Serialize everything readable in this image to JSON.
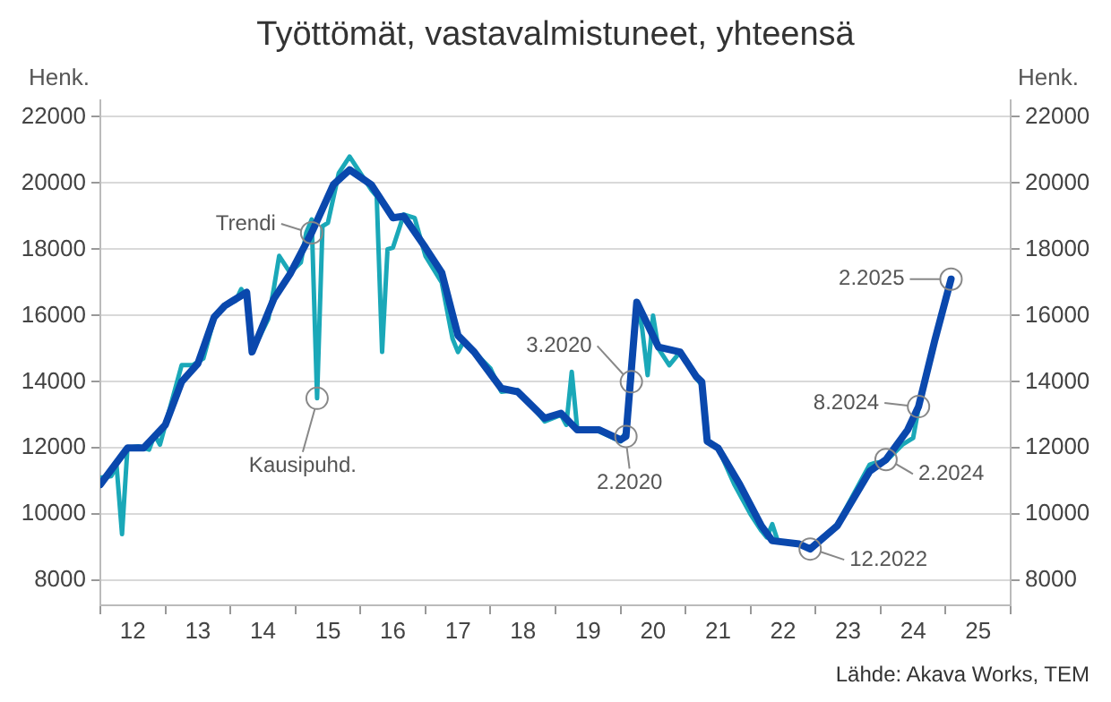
{
  "chart_data": {
    "type": "line",
    "title": "Työttömät, vastavalmistuneet, yhteensä",
    "ylabel": "Henk.",
    "y2label": "Henk.",
    "xlim": [
      "2012-01-01",
      "2026-01-01"
    ],
    "xticks": [
      {
        "value": "2012-01-01",
        "label": null
      },
      {
        "value": "2012-07-01",
        "label": "12"
      },
      {
        "value": "2013-01-01",
        "label": null
      },
      {
        "value": "2013-07-01",
        "label": "13"
      },
      {
        "value": "2014-01-01",
        "label": null
      },
      {
        "value": "2014-07-01",
        "label": "14"
      },
      {
        "value": "2015-01-01",
        "label": null
      },
      {
        "value": "2015-07-01",
        "label": "15"
      },
      {
        "value": "2016-01-01",
        "label": null
      },
      {
        "value": "2016-07-01",
        "label": "16"
      },
      {
        "value": "2017-01-01",
        "label": null
      },
      {
        "value": "2017-07-01",
        "label": "17"
      },
      {
        "value": "2018-01-01",
        "label": null
      },
      {
        "value": "2018-07-01",
        "label": "18"
      },
      {
        "value": "2019-01-01",
        "label": null
      },
      {
        "value": "2019-07-01",
        "label": "19"
      },
      {
        "value": "2020-01-01",
        "label": null
      },
      {
        "value": "2020-07-01",
        "label": "20"
      },
      {
        "value": "2021-01-01",
        "label": null
      },
      {
        "value": "2021-07-01",
        "label": "21"
      },
      {
        "value": "2022-01-01",
        "label": null
      },
      {
        "value": "2022-07-01",
        "label": "22"
      },
      {
        "value": "2023-01-01",
        "label": null
      },
      {
        "value": "2023-07-01",
        "label": "23"
      },
      {
        "value": "2024-01-01",
        "label": null
      },
      {
        "value": "2024-07-01",
        "label": "24"
      },
      {
        "value": "2025-01-01",
        "label": null
      },
      {
        "value": "2025-07-01",
        "label": "25"
      },
      {
        "value": "2026-01-01",
        "label": null
      }
    ],
    "ylim": [
      7250,
      22500
    ],
    "yticks": [
      8000,
      10000,
      12000,
      14000,
      16000,
      18000,
      20000,
      22000
    ],
    "y2lim": [
      7250,
      22500
    ],
    "y2ticks": [
      8000,
      10000,
      12000,
      14000,
      16000,
      18000,
      20000,
      22000
    ],
    "grid": "y",
    "series": [
      {
        "color": "#1aa8b8",
        "x": [
          "2012-01",
          "2012-03",
          "2012-04",
          "2012-05",
          "2012-06",
          "2012-08",
          "2012-10",
          "2012-11",
          "2012-12",
          "2013-02",
          "2013-04",
          "2013-06",
          "2013-08",
          "2013-10",
          "2013-12",
          "2014-02",
          "2014-03",
          "2014-04",
          "2014-05",
          "2014-08",
          "2014-09",
          "2014-10",
          "2014-12",
          "2015-02",
          "2015-03",
          "2015-04",
          "2015-05",
          "2015-06",
          "2015-07",
          "2015-09",
          "2015-11",
          "2016-01",
          "2016-03",
          "2016-04",
          "2016-05",
          "2016-06",
          "2016-07",
          "2016-09",
          "2016-11",
          "2017-01",
          "2017-04",
          "2017-06",
          "2017-07",
          "2017-08",
          "2017-10",
          "2018-01",
          "2018-03",
          "2018-06",
          "2018-09",
          "2018-11",
          "2019-02",
          "2019-03",
          "2019-04",
          "2019-05",
          "2019-09",
          "2020-01",
          "2020-02",
          "2020-03",
          "2020-04",
          "2020-05",
          "2020-06",
          "2020-07",
          "2020-08",
          "2020-10",
          "2020-12",
          "2021-03",
          "2021-04",
          "2021-05",
          "2021-07",
          "2021-10",
          "2022-01",
          "2022-03",
          "2022-04",
          "2022-05",
          "2022-06",
          "2022-10",
          "2022-12",
          "2023-05",
          "2023-09",
          "2023-11",
          "2023-12",
          "2024-02",
          "2024-05",
          "2024-06",
          "2024-07",
          "2024-08",
          "2024-11",
          "2025-02"
        ],
        "values": [
          11100,
          11150,
          11450,
          9400,
          12000,
          12050,
          11950,
          12400,
          12100,
          13300,
          14500,
          14500,
          14700,
          15900,
          16300,
          16450,
          16800,
          16500,
          14900,
          15900,
          16800,
          17800,
          17300,
          17600,
          18500,
          18900,
          13500,
          18700,
          18800,
          20300,
          20800,
          20300,
          19800,
          19600,
          14900,
          18000,
          18050,
          19050,
          18950,
          17800,
          17000,
          15300,
          14900,
          15200,
          14900,
          14400,
          13700,
          13750,
          13200,
          12800,
          13000,
          12700,
          14300,
          12600,
          12500,
          12200,
          12500,
          14000,
          16400,
          15600,
          14200,
          16000,
          15000,
          14500,
          14900,
          14100,
          13900,
          12250,
          12000,
          10900,
          10000,
          9500,
          9300,
          9700,
          9200,
          9100,
          8950,
          9700,
          10900,
          11500,
          11550,
          11600,
          12100,
          12200,
          12300,
          13200,
          15200,
          17100
        ]
      },
      {
        "color": "#0a48ad",
        "x": [
          "2012-01",
          "2012-06",
          "2012-09",
          "2013-01",
          "2013-04",
          "2013-07",
          "2013-10",
          "2013-12",
          "2014-04",
          "2014-05",
          "2014-09",
          "2014-12",
          "2015-04",
          "2015-08",
          "2015-11",
          "2016-03",
          "2016-07",
          "2016-09",
          "2017-01",
          "2017-04",
          "2017-07",
          "2017-10",
          "2018-03",
          "2018-06",
          "2018-11",
          "2019-02",
          "2019-05",
          "2019-09",
          "2020-01",
          "2020-02",
          "2020-04",
          "2020-08",
          "2020-12",
          "2021-03",
          "2021-04",
          "2021-05",
          "2021-07",
          "2021-11",
          "2022-03",
          "2022-05",
          "2022-10",
          "2022-12",
          "2023-05",
          "2023-11",
          "2024-02",
          "2024-06",
          "2024-08",
          "2024-11",
          "2025-02"
        ],
        "values": [
          10900,
          12000,
          12000,
          12700,
          14000,
          14550,
          15950,
          16300,
          16700,
          14900,
          16500,
          17250,
          18500,
          19950,
          20400,
          19950,
          18950,
          19000,
          18050,
          17300,
          15400,
          14900,
          13800,
          13700,
          12900,
          13050,
          12550,
          12550,
          12250,
          12350,
          16400,
          15050,
          14900,
          14150,
          14000,
          12200,
          12000,
          10900,
          9650,
          9200,
          9100,
          8950,
          9650,
          11300,
          11650,
          12550,
          13250,
          15250,
          17100
        ]
      }
    ],
    "annotations": [
      {
        "text": "Trendi",
        "x": "2015-04",
        "y": 18500
      },
      {
        "text": "Kausipuhd.",
        "x": "2015-05",
        "y": 13500
      },
      {
        "text": "3.2020",
        "x": "2020-03",
        "y": 14000
      },
      {
        "text": "2.2020",
        "x": "2020-02",
        "y": 12350
      },
      {
        "text": "12.2022",
        "x": "2022-12",
        "y": 8950
      },
      {
        "text": "2.2024",
        "x": "2024-02",
        "y": 11650
      },
      {
        "text": "8.2024",
        "x": "2024-08",
        "y": 13250
      },
      {
        "text": "2.2025",
        "x": "2025-02",
        "y": 17100
      },
      "Lähde: Akava Works, TEM"
    ]
  }
}
